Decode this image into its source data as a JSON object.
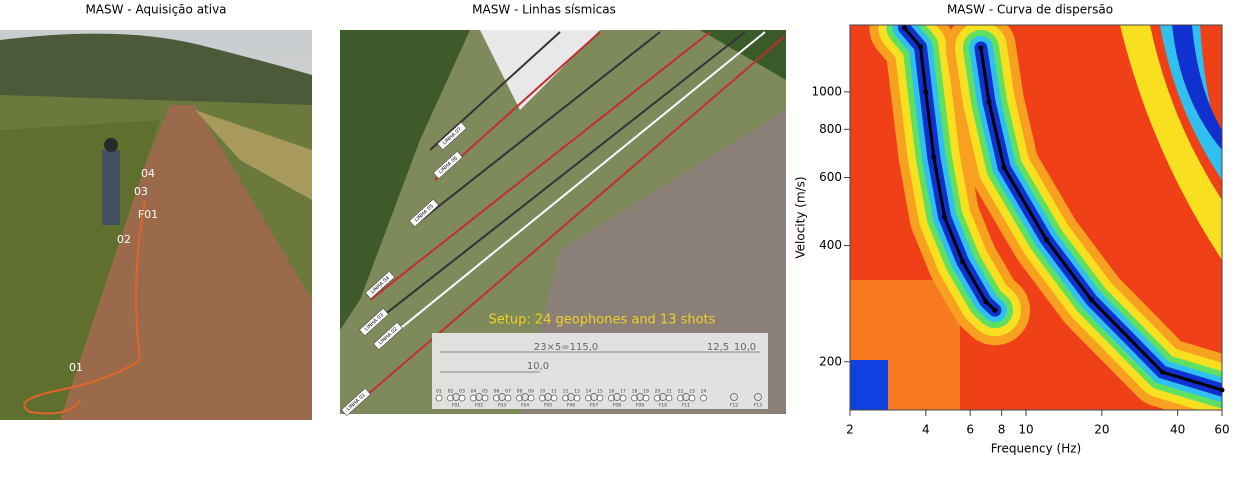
{
  "photo": {
    "title": "MASW - Aquisição ativa",
    "labels": [
      "04",
      "03",
      "F01",
      "02",
      "01"
    ]
  },
  "aerial": {
    "title": "MASW - Linhas sísmicas",
    "lines": [
      "LINHA 07",
      "LINHA 06",
      "LINHA 05",
      "LINHA 04",
      "LINHA 03",
      "LINHA 02",
      "LINHA 01"
    ],
    "caption": "Setup: 24 geophones and 13 shots",
    "dimensions": [
      "23×5=115,0",
      "10,0",
      "12,5",
      "10,0"
    ],
    "geophones": [
      "01",
      "02",
      "03",
      "04",
      "05",
      "06",
      "07",
      "08",
      "09",
      "10",
      "11",
      "12",
      "13",
      "14",
      "15",
      "16",
      "17",
      "18",
      "19",
      "20",
      "21",
      "22",
      "23",
      "24"
    ],
    "shots": [
      "F01",
      "F02",
      "F03",
      "F04",
      "F05",
      "F06",
      "F07",
      "F08",
      "F09",
      "F10",
      "F11",
      "F12",
      "F13"
    ]
  },
  "chart_data": {
    "type": "line",
    "title": "MASW - Curva de dispersão",
    "xlabel": "Frequency (Hz)",
    "ylabel": "Velocity (m/s)",
    "log_x": true,
    "log_y": true,
    "xlim": [
      2,
      60
    ],
    "ylim": [
      150,
      1490
    ],
    "xticks": [
      2,
      4,
      6,
      8,
      10,
      20,
      40,
      60
    ],
    "yticks": [
      200,
      400,
      600,
      800,
      1000
    ],
    "series": [
      {
        "color": "#000000",
        "x": [
          3.29,
          3.81,
          4.0,
          4.3,
          4.75,
          5.61,
          6.93,
          7.53
        ],
        "values": [
          1465,
          1308,
          1000,
          679,
          474,
          363,
          286,
          272
        ]
      },
      {
        "color": "#000000",
        "x": [
          6.62,
          7.13,
          8.19,
          12.05,
          18.2,
          34.8,
          60
        ],
        "values": [
          1300,
          942,
          636,
          414,
          289,
          188,
          169
        ]
      }
    ]
  }
}
